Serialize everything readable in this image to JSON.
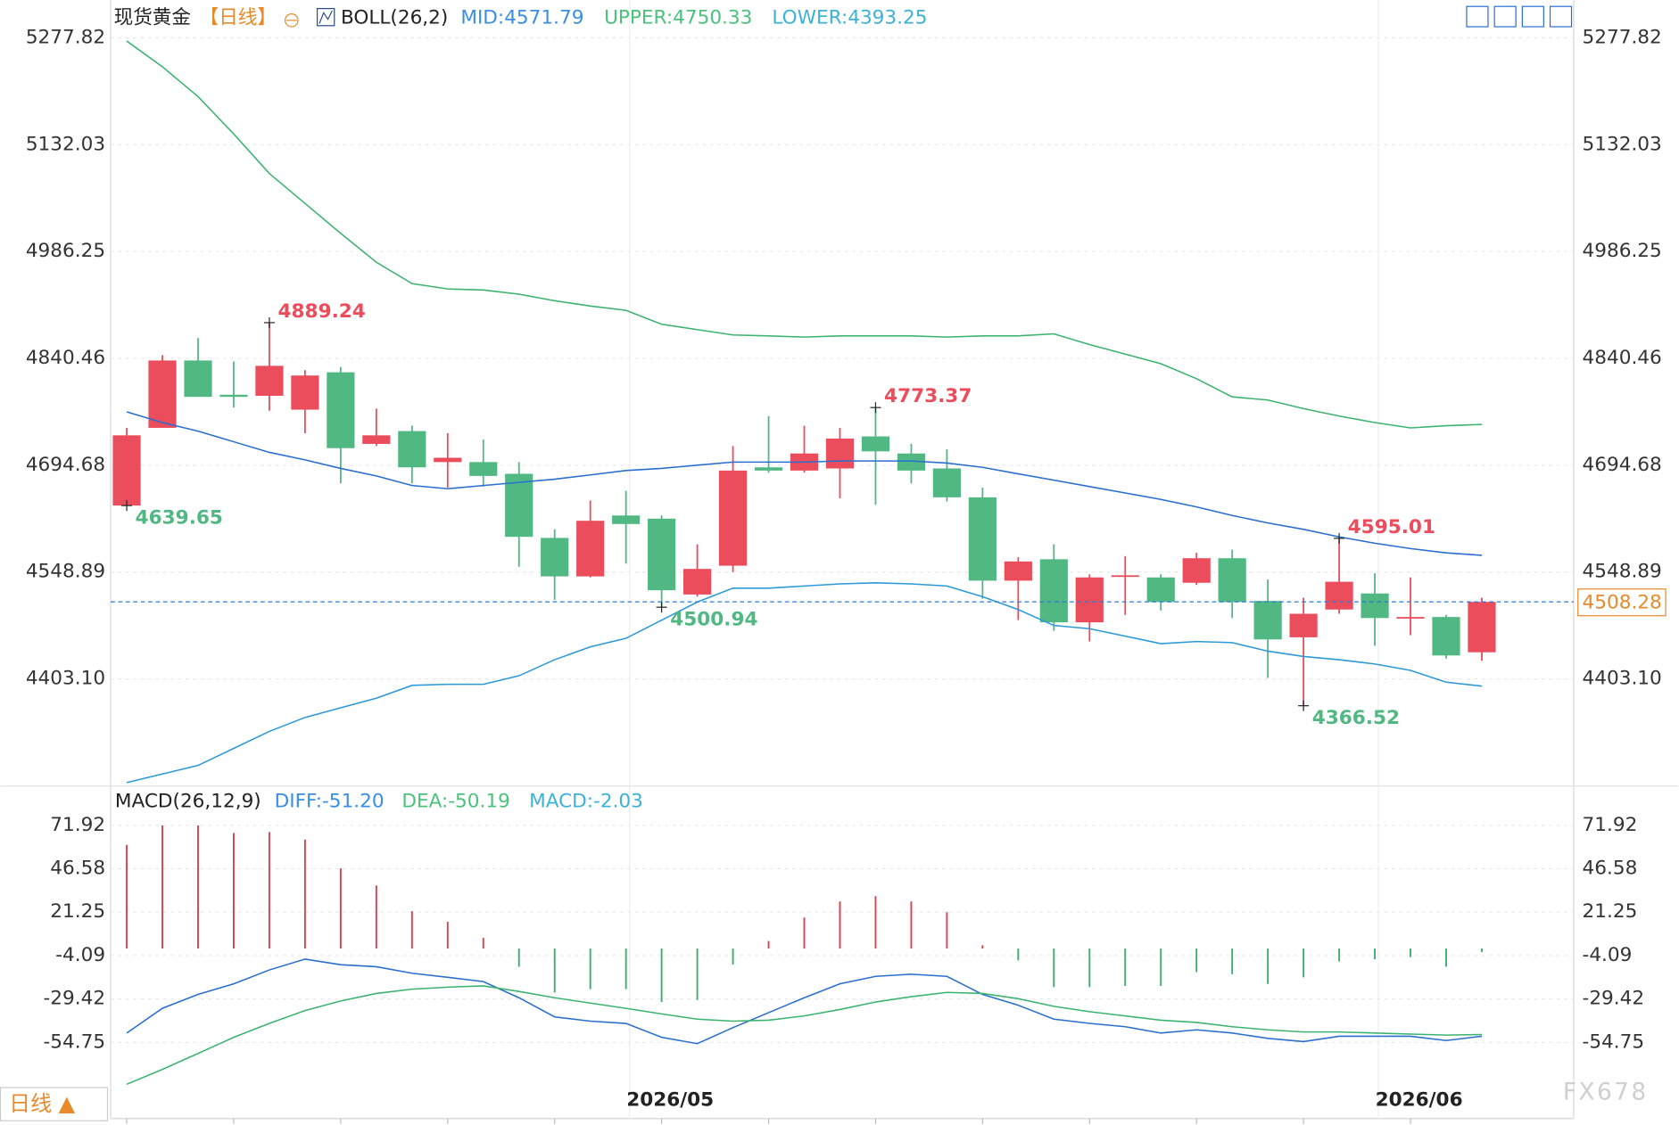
{
  "period_button": "日线 ▲",
  "watermark": "FX678",
  "chart_data": [
    {
      "type": "candlestick",
      "title": "现货黄金",
      "period": "【日线】",
      "legend": [
        {
          "text": "BOLL(26,2)",
          "color": "#222222"
        },
        {
          "text": "MID:4571.79",
          "color": "#3a8ee6"
        },
        {
          "text": "UPPER:4750.33",
          "color": "#4cc17c"
        },
        {
          "text": "LOWER:4393.25",
          "color": "#3cb2d8"
        }
      ],
      "categories": [
        null,
        null,
        null,
        null,
        null,
        null,
        null,
        null,
        null,
        null,
        null,
        null,
        null,
        null,
        null,
        "2026/05",
        null,
        null,
        null,
        null,
        null,
        null,
        null,
        null,
        null,
        null,
        null,
        null,
        null,
        null,
        null,
        null,
        null,
        null,
        null,
        null,
        "2026/06",
        null,
        null
      ],
      "open": [
        4639.65,
        4745.7,
        4837.6,
        4790.9,
        4789.4,
        4770.5,
        4821.5,
        4723.8,
        4741.3,
        4699.0,
        4699.0,
        4683.0,
        4595.5,
        4543.0,
        4626.1,
        4621.8,
        4518.3,
        4557.6,
        4691.8,
        4687.4,
        4690.3,
        4734.0,
        4710.7,
        4690.3,
        4650.9,
        4537.2,
        4566.4,
        4480.3,
        4543.0,
        4541.6,
        4534.3,
        4567.8,
        4509.5,
        4459.9,
        4497.8,
        4519.7,
        4486.2,
        4487.6,
        4439.5
      ],
      "high": [
        4745.7,
        4844.8,
        4868.2,
        4836.1,
        4889.24,
        4824.4,
        4828.8,
        4771.9,
        4748.6,
        4738.4,
        4729.7,
        4699.0,
        4607.2,
        4646.6,
        4659.7,
        4626.1,
        4586.8,
        4720.9,
        4761.7,
        4748.6,
        4745.7,
        4773.37,
        4723.8,
        4716.5,
        4664.1,
        4569.3,
        4586.8,
        4545.9,
        4570.7,
        4545.9,
        4575.1,
        4579.5,
        4538.7,
        4513.9,
        4595.01,
        4547.4,
        4541.6,
        4490.5,
        4513.9
      ],
      "low": [
        4639.65,
        4745.7,
        4788.0,
        4773.4,
        4769.0,
        4738.4,
        4669.9,
        4720.9,
        4669.9,
        4664.1,
        4665.5,
        4556.2,
        4511.0,
        4541.6,
        4560.5,
        4500.94,
        4515.3,
        4548.9,
        4684.5,
        4684.5,
        4649.5,
        4640.7,
        4669.9,
        4645.1,
        4512.4,
        4483.3,
        4468.7,
        4454.1,
        4490.5,
        4496.4,
        4531.4,
        4486.2,
        4404.5,
        4366.52,
        4492.0,
        4448.3,
        4462.8,
        4430.8,
        4427.9
      ],
      "close": [
        4735.5,
        4837.6,
        4788.0,
        4788.0,
        4830.3,
        4817.1,
        4718.0,
        4735.5,
        4691.8,
        4704.9,
        4680.1,
        4597.0,
        4543.0,
        4618.9,
        4614.5,
        4524.1,
        4553.2,
        4687.4,
        4687.4,
        4710.7,
        4731.1,
        4713.6,
        4687.4,
        4650.9,
        4537.2,
        4563.4,
        4480.3,
        4541.6,
        4544.5,
        4508.0,
        4567.8,
        4508.0,
        4457.0,
        4492.0,
        4535.7,
        4486.2,
        4487.6,
        4435.1,
        4508.28
      ],
      "up_color": "#eb4d5c",
      "down_color": "#52b883",
      "series": [
        {
          "name": "UPPER",
          "color": "#3cb371",
          "values": [
            5273.5,
            5238.5,
            5197.7,
            5146.6,
            5092.7,
            5051.9,
            5011.1,
            4971.7,
            4942.5,
            4935.2,
            4933.8,
            4928.0,
            4919.2,
            4911.9,
            4906.1,
            4887.1,
            4879.8,
            4872.5,
            4871.1,
            4869.6,
            4871.1,
            4871.1,
            4871.1,
            4869.6,
            4871.1,
            4871.1,
            4874.0,
            4859.4,
            4846.3,
            4833.2,
            4812.8,
            4788.0,
            4783.6,
            4771.9,
            4761.7,
            4753.0,
            4745.7,
            4748.6,
            4750.33
          ]
        },
        {
          "name": "MID",
          "color": "#2a6fd0",
          "values": [
            4767.6,
            4753.0,
            4741.3,
            4726.7,
            4712.2,
            4702.0,
            4690.3,
            4680.1,
            4667.0,
            4662.6,
            4667.0,
            4671.3,
            4675.7,
            4681.5,
            4687.4,
            4690.3,
            4694.7,
            4699.0,
            4699.0,
            4699.0,
            4700.5,
            4700.5,
            4700.5,
            4697.6,
            4691.8,
            4683.0,
            4674.3,
            4665.5,
            4656.8,
            4648.0,
            4637.8,
            4626.1,
            4615.9,
            4607.2,
            4597.0,
            4588.2,
            4580.9,
            4575.1,
            4571.79
          ]
        },
        {
          "name": "LOWER",
          "color": "#2c9ad8",
          "values": [
            4261.6,
            4273.3,
            4285.0,
            4308.3,
            4331.6,
            4350.6,
            4363.7,
            4376.8,
            4394.3,
            4395.8,
            4395.8,
            4407.4,
            4429.3,
            4446.8,
            4458.5,
            4483.3,
            4508.0,
            4527.0,
            4527.0,
            4529.9,
            4532.8,
            4534.3,
            4532.8,
            4529.9,
            4515.3,
            4497.8,
            4476.0,
            4471.6,
            4461.4,
            4451.2,
            4454.1,
            4452.6,
            4441.0,
            4433.7,
            4429.3,
            4423.5,
            4414.7,
            4398.7,
            4393.25
          ]
        }
      ],
      "annotations": [
        {
          "index": 4,
          "field": "high"
        },
        {
          "index": 0,
          "field": "low"
        },
        {
          "index": 15,
          "field": "low"
        },
        {
          "index": 21,
          "field": "high"
        },
        {
          "index": 34,
          "field": "high"
        },
        {
          "index": 33,
          "field": "low"
        }
      ],
      "last_price": 4508.28,
      "last_price_color": "#e8892a",
      "ylim": [
        4257,
        5293
      ],
      "yticks": [
        {
          "value": 4403.1,
          "label": "4403.10"
        },
        4548.89,
        4694.68,
        4840.46,
        4986.25,
        5132.03,
        5277.82
      ],
      "grid": true
    },
    {
      "type": "macd",
      "legend": [
        {
          "text": "MACD(26,12,9)",
          "color": "#222222"
        },
        {
          "text": "DIFF:-51.20",
          "color": "#3a8ee6"
        },
        {
          "text": "DEA:-50.19",
          "color": "#4cc17c"
        },
        {
          "text": "MACD:-2.03",
          "color": "#3cb2d8"
        }
      ],
      "histogram": [
        60.5,
        71.8,
        71.8,
        67.4,
        68.0,
        63.6,
        46.8,
        36.8,
        21.8,
        15.6,
        6.2,
        -10.6,
        -25.6,
        -23.7,
        -23.7,
        -31.2,
        -30.0,
        -9.4,
        4.4,
        18.1,
        27.5,
        30.6,
        27.5,
        21.2,
        1.9,
        -6.9,
        -22.5,
        -22.5,
        -21.8,
        -21.8,
        -13.7,
        -15.0,
        -20.6,
        -16.8,
        -7.5,
        -6.2,
        -5.0,
        -10.6,
        -2.03
      ],
      "up_color": "#d9434f",
      "down_color": "#3fae6e",
      "series": [
        {
          "name": "DIFF",
          "color": "#2a6fd0",
          "values": [
            -49.3,
            -34.9,
            -26.8,
            -20.6,
            -12.5,
            -6.2,
            -9.4,
            -10.6,
            -14.4,
            -16.8,
            -19.3,
            -28.7,
            -39.9,
            -42.4,
            -43.7,
            -51.8,
            -55.5,
            -46.2,
            -37.4,
            -28.7,
            -20.6,
            -16.2,
            -15.0,
            -16.2,
            -26.8,
            -33.1,
            -41.2,
            -43.7,
            -45.6,
            -49.3,
            -47.4,
            -49.3,
            -52.4,
            -54.3,
            -51.2,
            -51.2,
            -51.2,
            -53.7,
            -51.2
          ]
        },
        {
          "name": "DEA",
          "color": "#3cb371",
          "values": [
            -79.2,
            -70.5,
            -61.2,
            -51.8,
            -43.7,
            -36.2,
            -30.6,
            -26.2,
            -23.7,
            -22.5,
            -21.8,
            -25.0,
            -28.7,
            -31.8,
            -34.9,
            -38.1,
            -41.2,
            -42.4,
            -41.8,
            -39.3,
            -35.6,
            -31.2,
            -28.1,
            -25.6,
            -26.2,
            -29.3,
            -33.7,
            -36.8,
            -39.3,
            -41.8,
            -43.1,
            -45.6,
            -47.4,
            -48.7,
            -48.7,
            -49.3,
            -49.9,
            -50.5,
            -50.19
          ]
        }
      ],
      "ylim": [
        -83,
        80.5
      ],
      "yticks": [
        -54.75,
        -29.42,
        -4.09,
        21.25,
        46.58,
        71.92
      ],
      "grid": true
    }
  ]
}
